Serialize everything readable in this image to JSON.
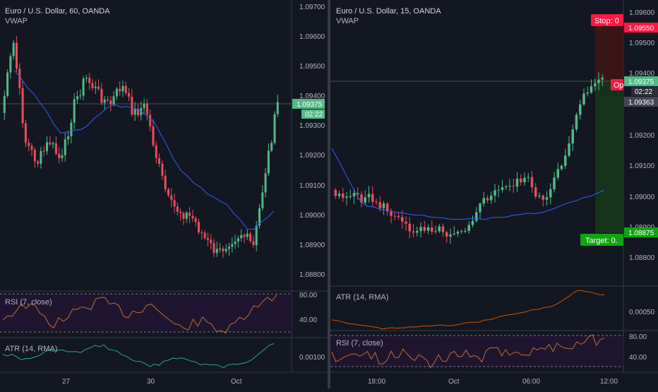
{
  "colors": {
    "background": "#131722",
    "up": "#53b987",
    "down": "#eb4d5c",
    "vwap": "#2962ff",
    "rsi_line": "#c46a2b",
    "atr_left": "#26a69a",
    "atr_right": "#d35400",
    "stop": "#ff1744",
    "target": "#10a510",
    "price_tag": "#53b987"
  },
  "left_chart": {
    "title": "Euro / U.S. Dollar, 60, OANDA",
    "indicator_label": "VWAP",
    "price_ticks": [
      "1.09700",
      "1.09600",
      "1.09500",
      "1.09400",
      "1.09300",
      "1.09200",
      "1.09100",
      "1.09000",
      "1.08900",
      "1.08800"
    ],
    "current_price": "1.09375",
    "countdown": "02:22",
    "time_labels": [
      "27",
      "30",
      "Oct"
    ],
    "rsi_pane": {
      "label": "RSI (7, close)",
      "ticks": [
        "80.00",
        "40.00"
      ]
    },
    "atr_pane": {
      "label": "ATR (14, RMA)",
      "ticks": [
        "0.00100"
      ]
    }
  },
  "right_chart": {
    "title": "Euro / U.S. Dollar, 15, OANDA",
    "indicator_label": "VWAP",
    "price_ticks": [
      "1.09600",
      "1.09500",
      "1.09400",
      "1.09200",
      "1.09100",
      "1.09000",
      "1.08900",
      "1.08800"
    ],
    "stop_label": "Stop: 0",
    "stop_price": "1.09550",
    "current_price": "1.09375",
    "countdown": "02:22",
    "entry_price": "1.09363",
    "open_label": "Op",
    "target_label": "Target: 0.",
    "target_price": "1.08875",
    "time_labels": [
      "18:00",
      "Oct",
      "06:00",
      "12:00"
    ],
    "atr_pane": {
      "label": "ATR (14, RMA)",
      "ticks": [
        "0.00050"
      ]
    },
    "rsi_pane": {
      "label": "RSI (7, close)",
      "ticks": [
        "80.00",
        "40.00"
      ]
    }
  }
}
